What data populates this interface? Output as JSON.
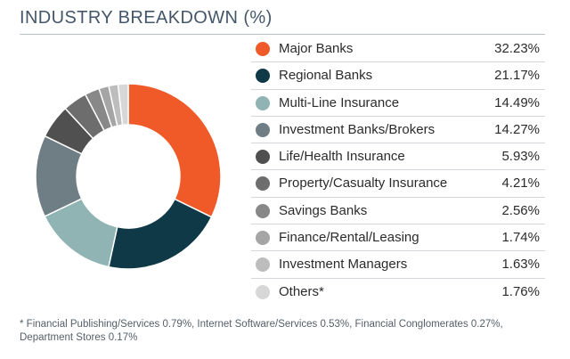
{
  "chart_data": {
    "type": "pie",
    "title": "INDUSTRY BREAKDOWN (%)",
    "donut": true,
    "legend_position": "right",
    "categories": [
      "Major Banks",
      "Regional Banks",
      "Multi-Line Insurance",
      "Investment Banks/Brokers",
      "Life/Health Insurance",
      "Property/Casualty Insurance",
      "Savings Banks",
      "Finance/Rental/Leasing",
      "Investment Managers",
      "Others*"
    ],
    "values": [
      32.23,
      21.17,
      14.49,
      14.27,
      5.93,
      4.21,
      2.56,
      1.74,
      1.63,
      1.76
    ],
    "value_labels": [
      "32.23%",
      "21.17%",
      "14.49%",
      "14.27%",
      "5.93%",
      "4.21%",
      "2.56%",
      "1.74%",
      "1.63%",
      "1.76%"
    ],
    "colors": [
      "#f05a28",
      "#0f3947",
      "#8fb4b3",
      "#6f7d84",
      "#505050",
      "#6d6d6d",
      "#888888",
      "#a5a5a5",
      "#bdbdbd",
      "#d7d7d7"
    ],
    "footnote": "* Financial Publishing/Services 0.79%, Internet Software/Services 0.53%, Financial Conglomerates 0.27%, Department Stores 0.17%"
  }
}
